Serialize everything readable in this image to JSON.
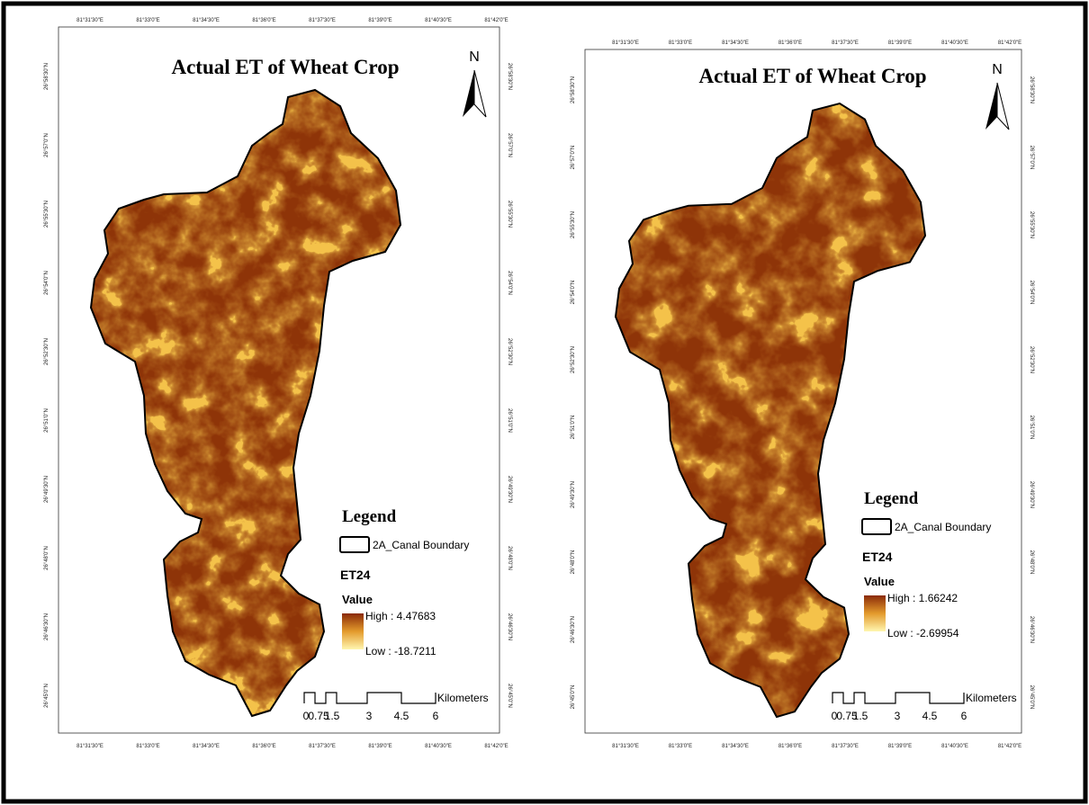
{
  "maps": [
    {
      "title": "Actual ET of Wheat Crop",
      "north": "N",
      "x_ticks": [
        "81°31'30\"E",
        "81°33'0\"E",
        "81°34'30\"E",
        "81°36'0\"E",
        "81°37'30\"E",
        "81°39'0\"E",
        "81°40'30\"E",
        "81°42'0\"E"
      ],
      "y_ticks": [
        "26°58'30\"N",
        "26°57'0\"N",
        "26°55'30\"N",
        "26°54'0\"N",
        "26°52'30\"N",
        "26°51'0\"N",
        "26°49'30\"N",
        "26°48'0\"N",
        "26°46'30\"N",
        "26°45'0\"N"
      ],
      "legend": {
        "title": "Legend",
        "boundary": "2A_Canal Boundary",
        "layer": "ET24",
        "value": "Value",
        "high": "High : 4.47683",
        "low": "Low : -18.7211"
      },
      "scale": {
        "labels": [
          "0",
          "0.75",
          "1.5",
          "3",
          "4.5",
          "6"
        ],
        "unit": "Kilometers"
      }
    },
    {
      "title": "Actual ET of Wheat Crop",
      "north": "N",
      "x_ticks": [
        "81°31'30\"E",
        "81°33'0\"E",
        "81°34'30\"E",
        "81°36'0\"E",
        "81°37'30\"E",
        "81°39'0\"E",
        "81°40'30\"E",
        "81°42'0\"E"
      ],
      "y_ticks": [
        "26°58'30\"N",
        "26°57'0\"N",
        "26°55'30\"N",
        "26°54'0\"N",
        "26°52'30\"N",
        "26°51'0\"N",
        "26°49'30\"N",
        "26°48'0\"N",
        "26°46'30\"N",
        "26°45'0\"N"
      ],
      "legend": {
        "title": "Legend",
        "boundary": "2A_Canal Boundary",
        "layer": "ET24",
        "value": "Value",
        "high": "High : 1.66242",
        "low": "Low : -2.69954"
      },
      "scale": {
        "labels": [
          "0",
          "0.75",
          "1.5",
          "3",
          "4.5",
          "6"
        ],
        "unit": "Kilometers"
      }
    }
  ]
}
